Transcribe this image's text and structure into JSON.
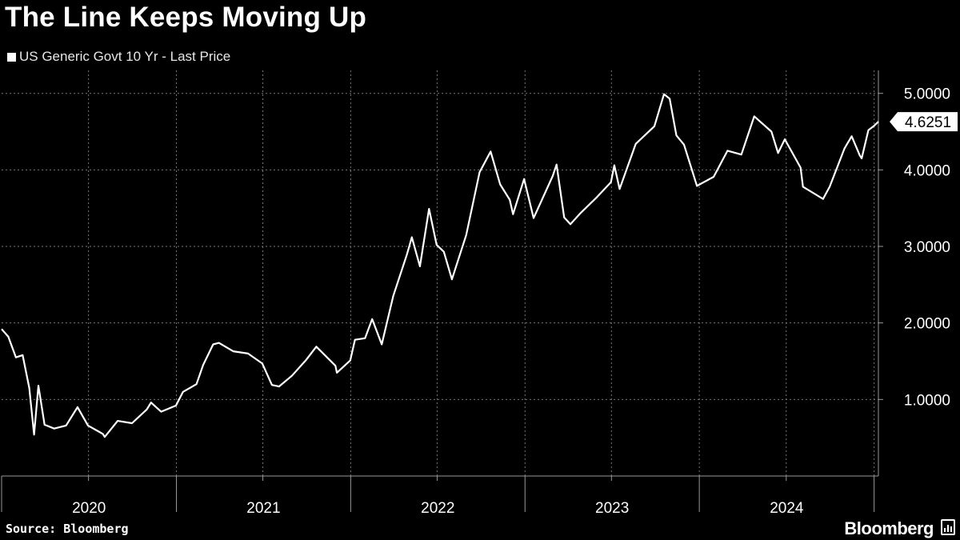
{
  "chart_data": {
    "type": "line",
    "title": "The Line Keeps Moving Up",
    "xlabel": "",
    "ylabel": "",
    "series": [
      {
        "name": "US Generic Govt 10 Yr - Last Price",
        "color": "#ffffff",
        "points": [
          [
            "2020-01-01",
            1.92
          ],
          [
            "2020-01-15",
            1.82
          ],
          [
            "2020-01-31",
            1.55
          ],
          [
            "2020-02-14",
            1.58
          ],
          [
            "2020-02-28",
            1.15
          ],
          [
            "2020-03-09",
            0.54
          ],
          [
            "2020-03-18",
            1.18
          ],
          [
            "2020-03-31",
            0.67
          ],
          [
            "2020-04-20",
            0.62
          ],
          [
            "2020-05-15",
            0.66
          ],
          [
            "2020-06-08",
            0.9
          ],
          [
            "2020-06-30",
            0.66
          ],
          [
            "2020-07-31",
            0.55
          ],
          [
            "2020-08-04",
            0.51
          ],
          [
            "2020-08-31",
            0.72
          ],
          [
            "2020-09-30",
            0.69
          ],
          [
            "2020-10-31",
            0.87
          ],
          [
            "2020-11-09",
            0.96
          ],
          [
            "2020-11-30",
            0.84
          ],
          [
            "2020-12-31",
            0.92
          ],
          [
            "2021-01-15",
            1.1
          ],
          [
            "2021-02-12",
            1.2
          ],
          [
            "2021-02-26",
            1.45
          ],
          [
            "2021-03-19",
            1.72
          ],
          [
            "2021-03-31",
            1.74
          ],
          [
            "2021-04-30",
            1.63
          ],
          [
            "2021-05-31",
            1.6
          ],
          [
            "2021-06-30",
            1.47
          ],
          [
            "2021-07-20",
            1.19
          ],
          [
            "2021-08-04",
            1.17
          ],
          [
            "2021-08-31",
            1.31
          ],
          [
            "2021-09-30",
            1.52
          ],
          [
            "2021-10-21",
            1.69
          ],
          [
            "2021-11-30",
            1.44
          ],
          [
            "2021-12-03",
            1.35
          ],
          [
            "2021-12-31",
            1.51
          ],
          [
            "2022-01-10",
            1.78
          ],
          [
            "2022-01-31",
            1.8
          ],
          [
            "2022-02-15",
            2.05
          ],
          [
            "2022-03-07",
            1.72
          ],
          [
            "2022-03-31",
            2.35
          ],
          [
            "2022-04-29",
            2.9
          ],
          [
            "2022-05-09",
            3.12
          ],
          [
            "2022-05-26",
            2.74
          ],
          [
            "2022-06-14",
            3.49
          ],
          [
            "2022-06-30",
            3.02
          ],
          [
            "2022-07-15",
            2.93
          ],
          [
            "2022-08-01",
            2.57
          ],
          [
            "2022-08-31",
            3.15
          ],
          [
            "2022-09-28",
            3.97
          ],
          [
            "2022-10-21",
            4.24
          ],
          [
            "2022-11-10",
            3.81
          ],
          [
            "2022-11-30",
            3.61
          ],
          [
            "2022-12-07",
            3.42
          ],
          [
            "2022-12-30",
            3.88
          ],
          [
            "2023-01-19",
            3.37
          ],
          [
            "2023-02-28",
            3.92
          ],
          [
            "2023-03-08",
            4.07
          ],
          [
            "2023-03-24",
            3.38
          ],
          [
            "2023-04-06",
            3.29
          ],
          [
            "2023-04-28",
            3.44
          ],
          [
            "2023-05-31",
            3.64
          ],
          [
            "2023-06-30",
            3.84
          ],
          [
            "2023-07-07",
            4.06
          ],
          [
            "2023-07-18",
            3.75
          ],
          [
            "2023-08-21",
            4.34
          ],
          [
            "2023-09-29",
            4.57
          ],
          [
            "2023-10-19",
            4.99
          ],
          [
            "2023-10-31",
            4.93
          ],
          [
            "2023-11-14",
            4.45
          ],
          [
            "2023-11-30",
            4.33
          ],
          [
            "2023-12-27",
            3.79
          ],
          [
            "2024-01-31",
            3.91
          ],
          [
            "2024-02-29",
            4.25
          ],
          [
            "2024-03-29",
            4.2
          ],
          [
            "2024-04-25",
            4.7
          ],
          [
            "2024-05-31",
            4.5
          ],
          [
            "2024-06-14",
            4.22
          ],
          [
            "2024-06-28",
            4.4
          ],
          [
            "2024-07-31",
            4.03
          ],
          [
            "2024-08-05",
            3.78
          ],
          [
            "2024-09-16",
            3.62
          ],
          [
            "2024-09-30",
            3.78
          ],
          [
            "2024-10-31",
            4.28
          ],
          [
            "2024-11-15",
            4.44
          ],
          [
            "2024-12-02",
            4.19
          ],
          [
            "2024-12-06",
            4.15
          ],
          [
            "2024-12-20",
            4.52
          ],
          [
            "2024-12-31",
            4.57
          ],
          [
            "2025-01-10",
            4.63
          ]
        ]
      }
    ],
    "x_ticks": [
      "2020",
      "2021",
      "2022",
      "2023",
      "2024"
    ],
    "y_ticks": [
      "1.0000",
      "2.0000",
      "3.0000",
      "4.0000",
      "5.0000"
    ],
    "xlim": [
      "2020-01-01",
      "2025-01-10"
    ],
    "ylim": [
      0,
      5.3
    ],
    "last_value_label": "4.6251",
    "grid": true,
    "legend_position": "top-left",
    "y_axis_side": "right",
    "colors": {
      "background": "#000000",
      "line": "#ffffff",
      "grid": "#777777",
      "axis": "#999999"
    }
  },
  "footer": {
    "source": "Source: Bloomberg",
    "brand": "Bloomberg"
  }
}
